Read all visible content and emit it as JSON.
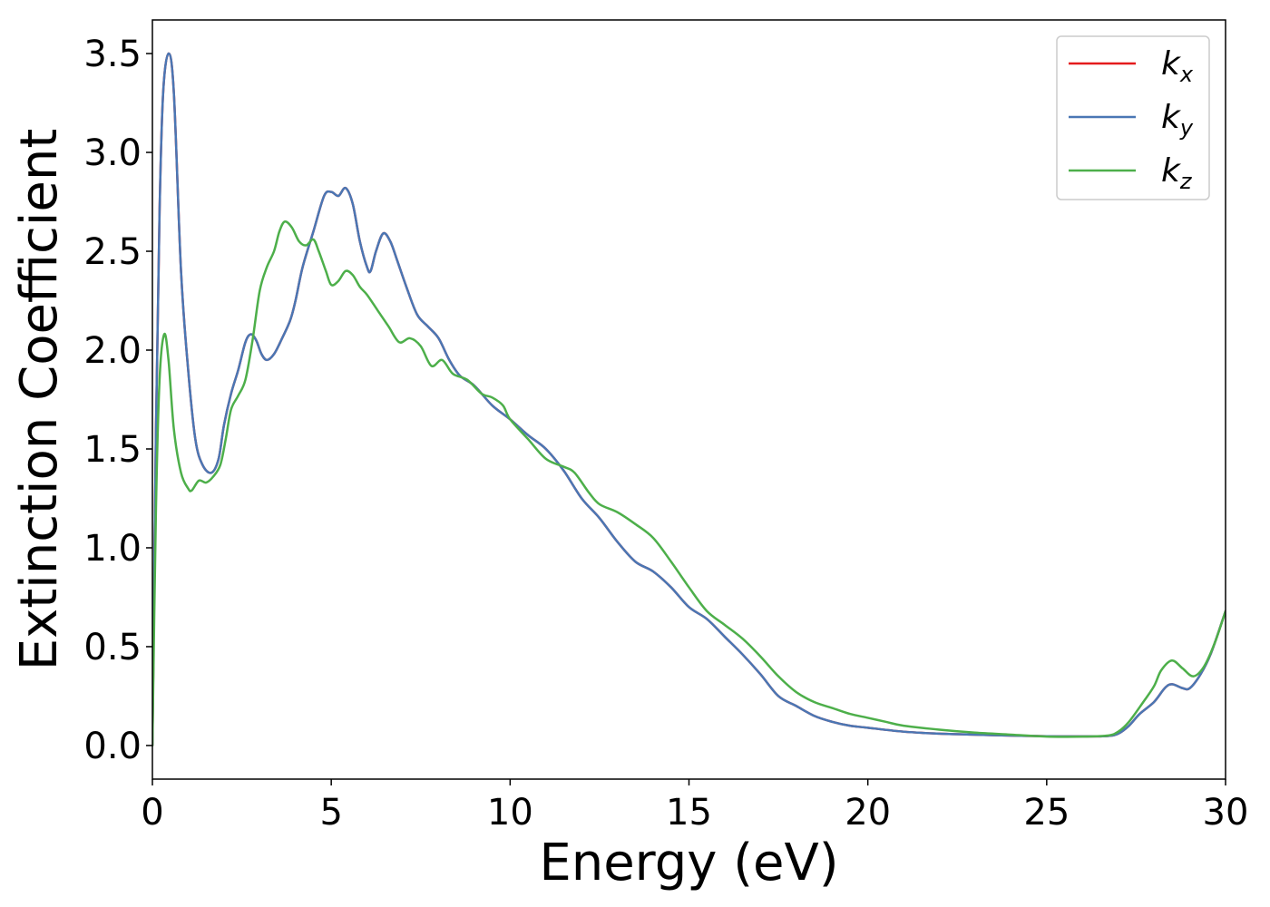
{
  "chart_data": {
    "type": "line",
    "xlabel": "Energy (eV)",
    "ylabel": "Extinction Coefficient",
    "xlim": [
      0,
      30
    ],
    "ylim": [
      -0.17,
      3.67
    ],
    "xticks": [
      0,
      5,
      10,
      15,
      20,
      25,
      30
    ],
    "xtick_labels": [
      "0",
      "5",
      "10",
      "15",
      "20",
      "25",
      "30"
    ],
    "yticks": [
      0.0,
      0.5,
      1.0,
      1.5,
      2.0,
      2.5,
      3.0,
      3.5
    ],
    "ytick_labels": [
      "0.0",
      "0.5",
      "1.0",
      "1.5",
      "2.0",
      "2.5",
      "3.0",
      "3.5"
    ],
    "grid": false,
    "legend_position": "top-right",
    "series": [
      {
        "name": "k_x",
        "label_main": "k",
        "label_sub": "x",
        "color": "#e41a1c",
        "points": [
          [
            0,
            0.0
          ],
          [
            0.1,
            1.6
          ],
          [
            0.2,
            2.7
          ],
          [
            0.3,
            3.3
          ],
          [
            0.45,
            3.5
          ],
          [
            0.6,
            3.3
          ],
          [
            0.8,
            2.4
          ],
          [
            1.0,
            1.9
          ],
          [
            1.2,
            1.55
          ],
          [
            1.4,
            1.42
          ],
          [
            1.65,
            1.38
          ],
          [
            1.85,
            1.45
          ],
          [
            2.0,
            1.62
          ],
          [
            2.2,
            1.78
          ],
          [
            2.4,
            1.9
          ],
          [
            2.6,
            2.04
          ],
          [
            2.75,
            2.08
          ],
          [
            2.9,
            2.05
          ],
          [
            3.05,
            1.98
          ],
          [
            3.2,
            1.95
          ],
          [
            3.4,
            1.98
          ],
          [
            3.6,
            2.05
          ],
          [
            3.85,
            2.15
          ],
          [
            4.0,
            2.25
          ],
          [
            4.2,
            2.42
          ],
          [
            4.5,
            2.6
          ],
          [
            4.8,
            2.78
          ],
          [
            5.0,
            2.8
          ],
          [
            5.2,
            2.78
          ],
          [
            5.4,
            2.82
          ],
          [
            5.6,
            2.74
          ],
          [
            5.8,
            2.55
          ],
          [
            6.0,
            2.42
          ],
          [
            6.1,
            2.4
          ],
          [
            6.25,
            2.5
          ],
          [
            6.45,
            2.59
          ],
          [
            6.65,
            2.55
          ],
          [
            6.85,
            2.45
          ],
          [
            7.1,
            2.32
          ],
          [
            7.4,
            2.18
          ],
          [
            7.7,
            2.12
          ],
          [
            8.0,
            2.06
          ],
          [
            8.3,
            1.95
          ],
          [
            8.6,
            1.87
          ],
          [
            9.0,
            1.82
          ],
          [
            9.5,
            1.72
          ],
          [
            10.0,
            1.65
          ],
          [
            10.5,
            1.57
          ],
          [
            11.0,
            1.5
          ],
          [
            11.5,
            1.39
          ],
          [
            12.0,
            1.25
          ],
          [
            12.5,
            1.15
          ],
          [
            13.0,
            1.03
          ],
          [
            13.5,
            0.93
          ],
          [
            14.0,
            0.88
          ],
          [
            14.5,
            0.8
          ],
          [
            15.0,
            0.7
          ],
          [
            15.5,
            0.64
          ],
          [
            16.0,
            0.55
          ],
          [
            16.5,
            0.46
          ],
          [
            17.0,
            0.36
          ],
          [
            17.5,
            0.25
          ],
          [
            18.0,
            0.2
          ],
          [
            18.5,
            0.15
          ],
          [
            19.0,
            0.12
          ],
          [
            19.5,
            0.1
          ],
          [
            20.0,
            0.09
          ],
          [
            21.0,
            0.07
          ],
          [
            22.0,
            0.06
          ],
          [
            23.0,
            0.055
          ],
          [
            24.0,
            0.05
          ],
          [
            25.0,
            0.047
          ],
          [
            26.0,
            0.046
          ],
          [
            26.7,
            0.048
          ],
          [
            27.0,
            0.06
          ],
          [
            27.3,
            0.1
          ],
          [
            27.6,
            0.16
          ],
          [
            28.0,
            0.22
          ],
          [
            28.3,
            0.29
          ],
          [
            28.5,
            0.31
          ],
          [
            28.8,
            0.29
          ],
          [
            29.0,
            0.29
          ],
          [
            29.3,
            0.36
          ],
          [
            29.6,
            0.47
          ],
          [
            30.0,
            0.68
          ]
        ]
      },
      {
        "name": "k_y",
        "label_main": "k",
        "label_sub": "y",
        "color": "#4a77b4",
        "points": [
          [
            0,
            0.0
          ],
          [
            0.1,
            1.6
          ],
          [
            0.2,
            2.7
          ],
          [
            0.3,
            3.3
          ],
          [
            0.45,
            3.5
          ],
          [
            0.6,
            3.3
          ],
          [
            0.8,
            2.4
          ],
          [
            1.0,
            1.9
          ],
          [
            1.2,
            1.55
          ],
          [
            1.4,
            1.42
          ],
          [
            1.65,
            1.38
          ],
          [
            1.85,
            1.45
          ],
          [
            2.0,
            1.62
          ],
          [
            2.2,
            1.78
          ],
          [
            2.4,
            1.9
          ],
          [
            2.6,
            2.04
          ],
          [
            2.75,
            2.08
          ],
          [
            2.9,
            2.05
          ],
          [
            3.05,
            1.98
          ],
          [
            3.2,
            1.95
          ],
          [
            3.4,
            1.98
          ],
          [
            3.6,
            2.05
          ],
          [
            3.85,
            2.15
          ],
          [
            4.0,
            2.25
          ],
          [
            4.2,
            2.42
          ],
          [
            4.5,
            2.6
          ],
          [
            4.8,
            2.78
          ],
          [
            5.0,
            2.8
          ],
          [
            5.2,
            2.78
          ],
          [
            5.4,
            2.82
          ],
          [
            5.6,
            2.74
          ],
          [
            5.8,
            2.55
          ],
          [
            6.0,
            2.42
          ],
          [
            6.1,
            2.4
          ],
          [
            6.25,
            2.5
          ],
          [
            6.45,
            2.59
          ],
          [
            6.65,
            2.55
          ],
          [
            6.85,
            2.45
          ],
          [
            7.1,
            2.32
          ],
          [
            7.4,
            2.18
          ],
          [
            7.7,
            2.12
          ],
          [
            8.0,
            2.06
          ],
          [
            8.3,
            1.95
          ],
          [
            8.6,
            1.87
          ],
          [
            9.0,
            1.82
          ],
          [
            9.5,
            1.72
          ],
          [
            10.0,
            1.65
          ],
          [
            10.5,
            1.57
          ],
          [
            11.0,
            1.5
          ],
          [
            11.5,
            1.39
          ],
          [
            12.0,
            1.25
          ],
          [
            12.5,
            1.15
          ],
          [
            13.0,
            1.03
          ],
          [
            13.5,
            0.93
          ],
          [
            14.0,
            0.88
          ],
          [
            14.5,
            0.8
          ],
          [
            15.0,
            0.7
          ],
          [
            15.5,
            0.64
          ],
          [
            16.0,
            0.55
          ],
          [
            16.5,
            0.46
          ],
          [
            17.0,
            0.36
          ],
          [
            17.5,
            0.25
          ],
          [
            18.0,
            0.2
          ],
          [
            18.5,
            0.15
          ],
          [
            19.0,
            0.12
          ],
          [
            19.5,
            0.1
          ],
          [
            20.0,
            0.09
          ],
          [
            21.0,
            0.07
          ],
          [
            22.0,
            0.06
          ],
          [
            23.0,
            0.055
          ],
          [
            24.0,
            0.05
          ],
          [
            25.0,
            0.047
          ],
          [
            26.0,
            0.046
          ],
          [
            26.7,
            0.048
          ],
          [
            27.0,
            0.06
          ],
          [
            27.3,
            0.1
          ],
          [
            27.6,
            0.16
          ],
          [
            28.0,
            0.22
          ],
          [
            28.3,
            0.29
          ],
          [
            28.5,
            0.31
          ],
          [
            28.8,
            0.29
          ],
          [
            29.0,
            0.29
          ],
          [
            29.3,
            0.36
          ],
          [
            29.6,
            0.47
          ],
          [
            30.0,
            0.68
          ]
        ]
      },
      {
        "name": "k_z",
        "label_main": "k",
        "label_sub": "z",
        "color": "#4daf4a",
        "points": [
          [
            0,
            0.0
          ],
          [
            0.1,
            1.2
          ],
          [
            0.2,
            1.85
          ],
          [
            0.33,
            2.08
          ],
          [
            0.45,
            1.95
          ],
          [
            0.6,
            1.6
          ],
          [
            0.8,
            1.38
          ],
          [
            1.0,
            1.3
          ],
          [
            1.1,
            1.29
          ],
          [
            1.3,
            1.34
          ],
          [
            1.5,
            1.33
          ],
          [
            1.7,
            1.36
          ],
          [
            1.9,
            1.42
          ],
          [
            2.05,
            1.55
          ],
          [
            2.2,
            1.7
          ],
          [
            2.4,
            1.77
          ],
          [
            2.6,
            1.85
          ],
          [
            2.8,
            2.05
          ],
          [
            3.0,
            2.3
          ],
          [
            3.2,
            2.42
          ],
          [
            3.4,
            2.5
          ],
          [
            3.55,
            2.6
          ],
          [
            3.7,
            2.65
          ],
          [
            3.9,
            2.62
          ],
          [
            4.1,
            2.55
          ],
          [
            4.3,
            2.53
          ],
          [
            4.5,
            2.56
          ],
          [
            4.65,
            2.5
          ],
          [
            4.85,
            2.4
          ],
          [
            5.0,
            2.33
          ],
          [
            5.2,
            2.35
          ],
          [
            5.4,
            2.4
          ],
          [
            5.6,
            2.38
          ],
          [
            5.8,
            2.32
          ],
          [
            6.0,
            2.28
          ],
          [
            6.3,
            2.2
          ],
          [
            6.6,
            2.12
          ],
          [
            6.9,
            2.04
          ],
          [
            7.2,
            2.06
          ],
          [
            7.5,
            2.02
          ],
          [
            7.8,
            1.92
          ],
          [
            8.1,
            1.95
          ],
          [
            8.4,
            1.88
          ],
          [
            8.8,
            1.85
          ],
          [
            9.2,
            1.78
          ],
          [
            9.5,
            1.76
          ],
          [
            9.8,
            1.72
          ],
          [
            10.0,
            1.65
          ],
          [
            10.5,
            1.55
          ],
          [
            11.0,
            1.45
          ],
          [
            11.5,
            1.41
          ],
          [
            11.8,
            1.38
          ],
          [
            12.2,
            1.28
          ],
          [
            12.5,
            1.22
          ],
          [
            13.0,
            1.18
          ],
          [
            13.5,
            1.12
          ],
          [
            14.0,
            1.05
          ],
          [
            14.5,
            0.93
          ],
          [
            15.0,
            0.8
          ],
          [
            15.5,
            0.68
          ],
          [
            16.0,
            0.61
          ],
          [
            16.5,
            0.54
          ],
          [
            17.0,
            0.45
          ],
          [
            17.5,
            0.35
          ],
          [
            18.0,
            0.27
          ],
          [
            18.5,
            0.22
          ],
          [
            19.0,
            0.19
          ],
          [
            19.5,
            0.16
          ],
          [
            20.0,
            0.14
          ],
          [
            20.5,
            0.12
          ],
          [
            21.0,
            0.1
          ],
          [
            22.0,
            0.08
          ],
          [
            23.0,
            0.065
          ],
          [
            24.0,
            0.055
          ],
          [
            25.0,
            0.045
          ],
          [
            26.0,
            0.045
          ],
          [
            26.7,
            0.05
          ],
          [
            27.0,
            0.07
          ],
          [
            27.3,
            0.12
          ],
          [
            27.7,
            0.22
          ],
          [
            28.0,
            0.3
          ],
          [
            28.2,
            0.38
          ],
          [
            28.5,
            0.43
          ],
          [
            28.8,
            0.39
          ],
          [
            29.1,
            0.35
          ],
          [
            29.4,
            0.4
          ],
          [
            29.7,
            0.52
          ],
          [
            30.0,
            0.68
          ]
        ]
      }
    ]
  }
}
